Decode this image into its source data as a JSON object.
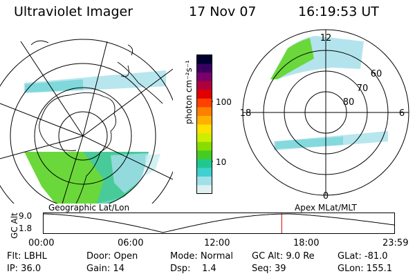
{
  "header": {
    "title": "Ultraviolet Imager",
    "date": "17 Nov 07",
    "time": "16:19:53 UT"
  },
  "colorbar": {
    "unit_label": "photon cm⁻²s⁻¹",
    "ticks": [
      "100",
      "10"
    ],
    "colors": [
      "#000030",
      "#3a0060",
      "#7a006a",
      "#b0003c",
      "#e00000",
      "#ff4000",
      "#ff8000",
      "#ffb000",
      "#ffe000",
      "#ccee00",
      "#88dd00",
      "#44cc22",
      "#20c890",
      "#40d0d0",
      "#a0e0e8",
      "#e0f0f0"
    ]
  },
  "left_map": {
    "caption": "Geographic Lat/Lon"
  },
  "right_map": {
    "caption": "Apex MLat/MLT",
    "mlt_labels": {
      "top": "12",
      "left": "18",
      "right": "6",
      "bottom": "0"
    },
    "lat_labels": [
      "60",
      "70",
      "80"
    ]
  },
  "timeline": {
    "axis_label": "GC Alt",
    "y_ticks": [
      "9.0",
      "1.8"
    ],
    "x_ticks": [
      "00:00",
      "06:00",
      "12:00",
      "18:00",
      "23:59"
    ],
    "marker_color": "#cc0000",
    "marker_time_fraction": 0.6777
  },
  "info": {
    "col1": [
      "Flt: LBHL",
      "IP: 36.0"
    ],
    "col2": [
      "Door: Open",
      "Gain: 14"
    ],
    "col3": [
      "Mode: Normal",
      "Dsp:    1.4"
    ],
    "col4": [
      "GC Alt: 9.0 Re",
      "Seq: 39"
    ],
    "col5": [
      "GLat: -81.0",
      "GLon: 155.1"
    ]
  }
}
